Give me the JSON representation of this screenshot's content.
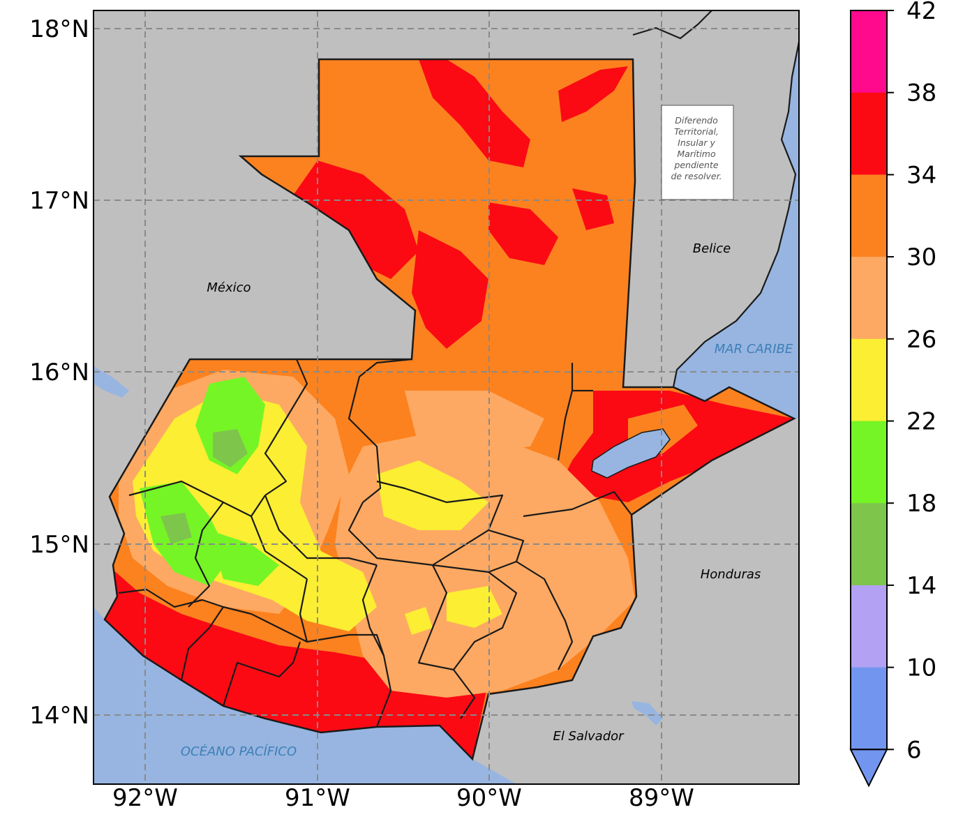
{
  "map": {
    "lon_ticks": [
      "92°W",
      "91°W",
      "90°W",
      "89°W"
    ],
    "lat_ticks": [
      "18°N",
      "17°N",
      "16°N",
      "15°N",
      "14°N"
    ],
    "labels": {
      "mexico": "México",
      "belice": "Belice",
      "honduras": "Honduras",
      "el_salvador": "El Salvador",
      "mar_caribe": "MAR CARIBE",
      "oceano_pacifico": "OCÉANO PACÍFICO"
    },
    "note_lines": [
      "Diferendo",
      "Territorial,",
      "Insular y",
      "Marítimo",
      "pendiente",
      "de resolver."
    ]
  },
  "colorbar": {
    "ticks": [
      "42",
      "38",
      "34",
      "30",
      "26",
      "22",
      "18",
      "14",
      "10",
      "6"
    ],
    "colors": [
      "#ff0a8c",
      "#fb0a14",
      "#fc821f",
      "#fda963",
      "#fbee33",
      "#75f525",
      "#7ec54c",
      "#b3a2f3",
      "#7296f0"
    ],
    "extend": "min"
  },
  "colors": {
    "land_background": "#bfbfbf",
    "water": "#97b5e0",
    "red": "#fb0a14",
    "orange": "#fc821f",
    "light_orange": "#fda963",
    "yellow": "#fbee33",
    "bright_green": "#75f525",
    "dark_green": "#7ec54c"
  }
}
